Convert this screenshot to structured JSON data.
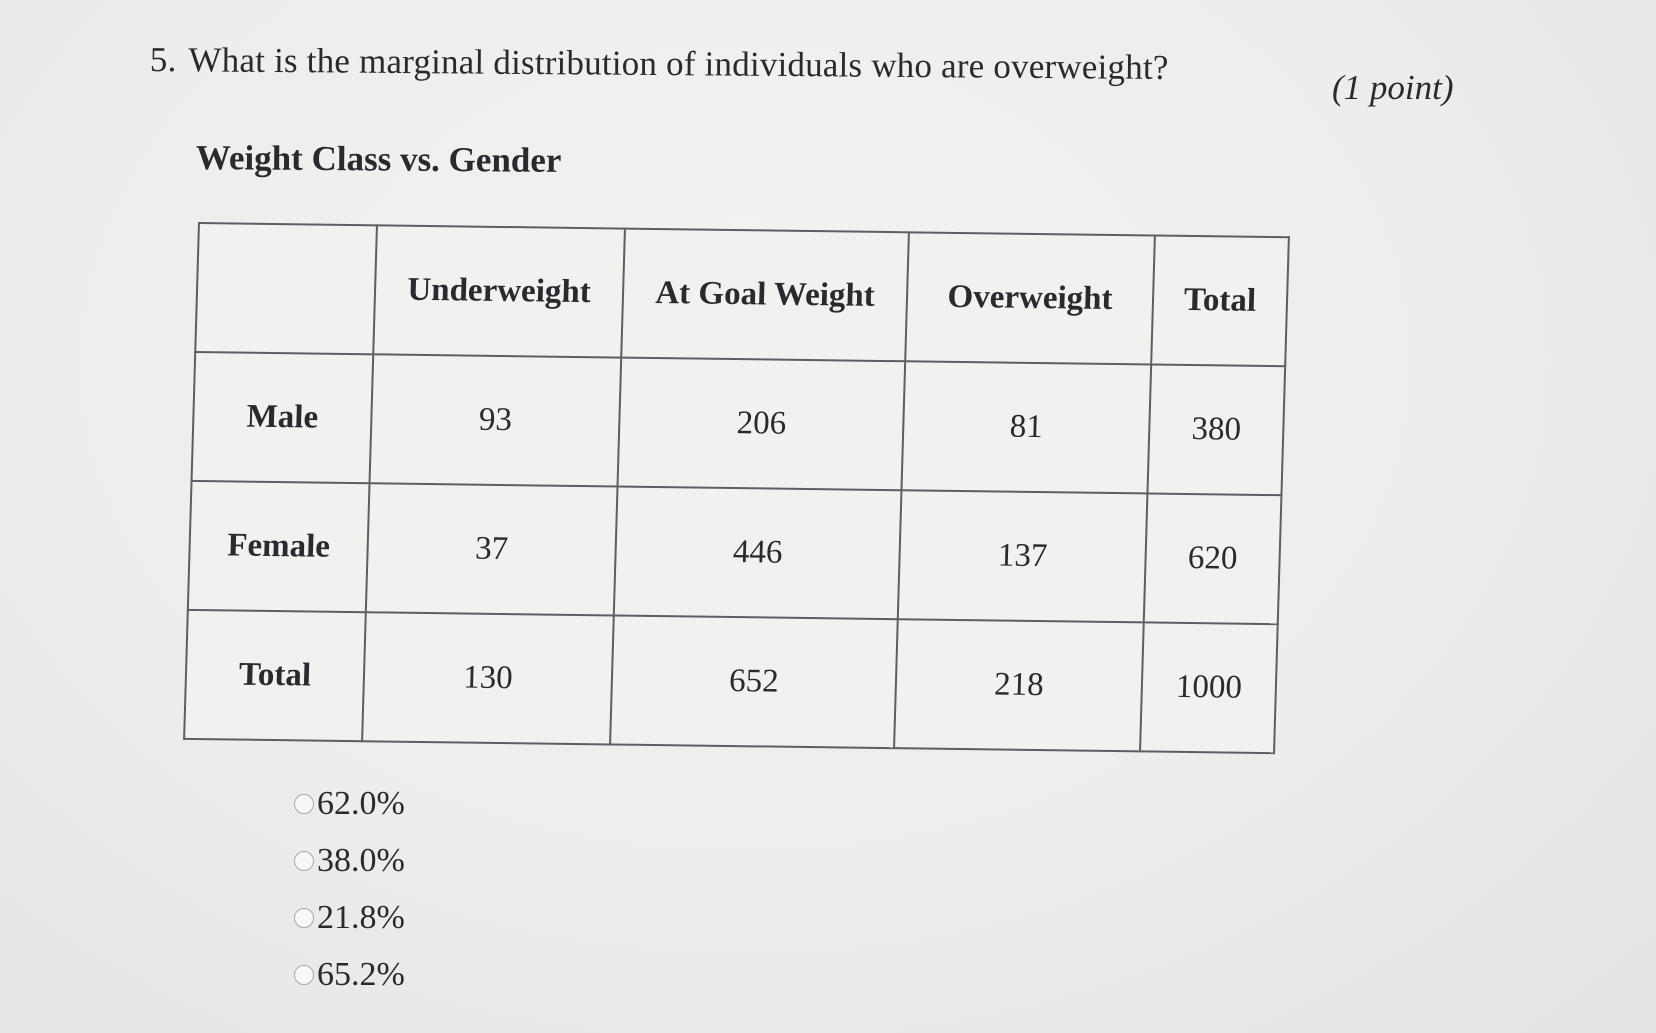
{
  "question": {
    "number": "5.",
    "text": "What is the marginal distribution of individuals who are overweight?",
    "points": "(1 point)"
  },
  "table": {
    "title": "Weight Class vs. Gender",
    "headers": [
      "",
      "Underweight",
      "At Goal Weight",
      "Overweight",
      "Total"
    ],
    "rows": [
      {
        "label": "Male",
        "cells": [
          "93",
          "206",
          "81",
          "380"
        ]
      },
      {
        "label": "Female",
        "cells": [
          "37",
          "446",
          "137",
          "620"
        ]
      },
      {
        "label": "Total",
        "cells": [
          "130",
          "652",
          "218",
          "1000"
        ]
      }
    ]
  },
  "options": [
    {
      "label": "62.0%"
    },
    {
      "label": "38.0%"
    },
    {
      "label": "21.8%"
    },
    {
      "label": "65.2%"
    }
  ]
}
